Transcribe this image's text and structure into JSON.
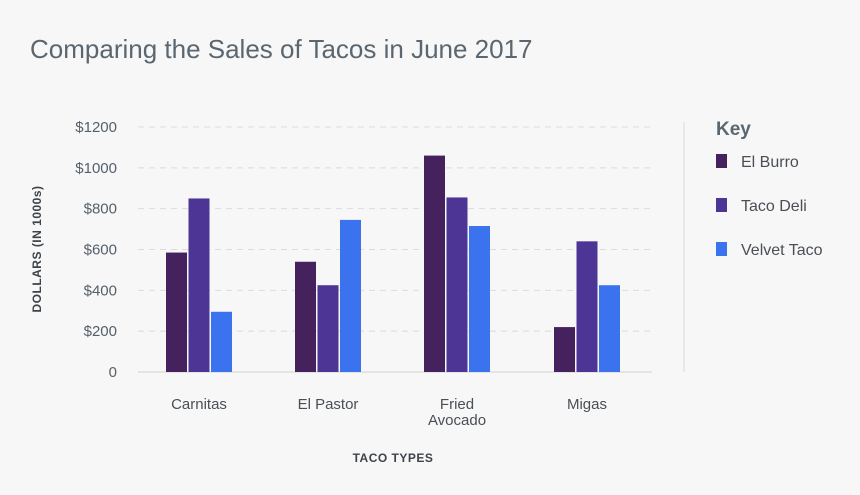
{
  "chart_data": {
    "type": "bar",
    "title": "Comparing the Sales of Tacos in June 2017",
    "xlabel": "TACO TYPES",
    "ylabel": "DOLLARS (IN 1000s)",
    "categories": [
      [
        "Carnitas"
      ],
      [
        "El Pastor"
      ],
      [
        "Fried",
        "Avocado"
      ],
      [
        "Migas"
      ]
    ],
    "ylim": [
      0,
      1200
    ],
    "yticks": [
      0,
      200,
      400,
      600,
      800,
      1000,
      1200
    ],
    "ytick_labels": [
      "0",
      "$200",
      "$400",
      "$600",
      "$800",
      "$1000",
      "$1200"
    ],
    "grid": "horizontal dashed",
    "legend_title": "Key",
    "legend_position": "right",
    "series": [
      {
        "name": "El Burro",
        "color": "#45215e",
        "values": [
          585,
          540,
          1060,
          220
        ]
      },
      {
        "name": "Taco Deli",
        "color": "#4d3595",
        "values": [
          850,
          425,
          855,
          640
        ]
      },
      {
        "name": "Velvet Taco",
        "color": "#3b73ee",
        "values": [
          295,
          745,
          715,
          425
        ]
      }
    ]
  }
}
